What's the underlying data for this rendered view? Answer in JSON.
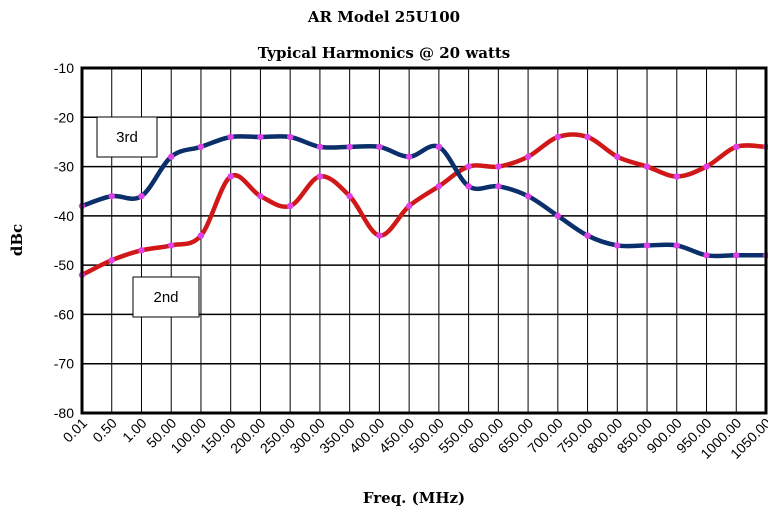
{
  "chart_data": {
    "type": "line",
    "title": "AR Model 25U100",
    "subtitle": "Typical Harmonics @ 20 watts",
    "xlabel": "Freq. (MHz)",
    "ylabel": "dBc",
    "categories": [
      "0.01",
      "0.50",
      "1.00",
      "50.00",
      "100.00",
      "150.00",
      "200.00",
      "250.00",
      "300.00",
      "350.00",
      "400.00",
      "450.00",
      "500.00",
      "550.00",
      "600.00",
      "650.00",
      "700.00",
      "750.00",
      "800.00",
      "850.00",
      "900.00",
      "950.00",
      "1000.00",
      "1050.00"
    ],
    "ylim": [
      -80,
      -10
    ],
    "yticks": [
      "-10",
      "-20",
      "-30",
      "-40",
      "-50",
      "-60",
      "-70",
      "-80"
    ],
    "grid": true,
    "series": [
      {
        "name": "3rd",
        "color": "#0a2f6b",
        "values": [
          -38,
          -36,
          -36,
          -28,
          -26,
          -24,
          -24,
          -24,
          -26,
          -26,
          -26,
          -28,
          -26,
          -34,
          -34,
          -36,
          -40,
          -44,
          -46,
          -46,
          -46,
          -48,
          -48,
          -48
        ]
      },
      {
        "name": "2nd",
        "color": "#d01818",
        "values": [
          -52,
          -49,
          -47,
          -46,
          -44,
          -32,
          -36,
          -38,
          -32,
          -36,
          -44,
          -38,
          -34,
          -30,
          -30,
          -28,
          -24,
          -24,
          -28,
          -30,
          -32,
          -30,
          -26,
          -26
        ]
      }
    ],
    "marker_color": "#e040e8"
  }
}
